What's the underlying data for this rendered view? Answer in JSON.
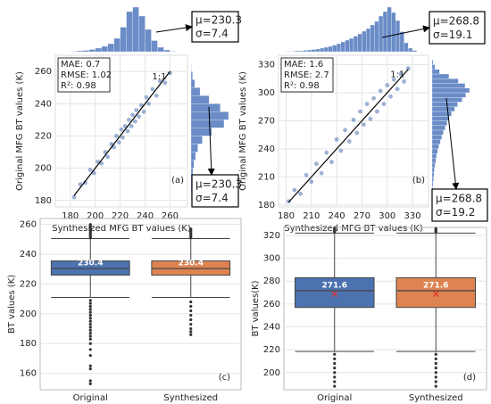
{
  "chart_data": [
    {
      "type": "scatter",
      "xlabel": "Synthesized MFG BT values (K)",
      "ylabel": "Original MFG BT values (K)",
      "xlim": [
        168,
        274
      ],
      "ylim": [
        176,
        270
      ],
      "xticks": [
        180,
        200,
        220,
        240,
        260
      ],
      "yticks": [
        180,
        200,
        220,
        240,
        260
      ],
      "color": "#4c72b0",
      "grid": true,
      "x": [
        183,
        188,
        192,
        196,
        199,
        202,
        205,
        208,
        210,
        213,
        215,
        217,
        219,
        221,
        222,
        224,
        226,
        227,
        229,
        230,
        232,
        233,
        235,
        237,
        239,
        241,
        243,
        246,
        249,
        252,
        256,
        260
      ],
      "y": [
        182,
        190,
        191,
        199,
        197,
        204,
        203,
        210,
        207,
        215,
        213,
        220,
        216,
        224,
        219,
        226,
        223,
        230,
        226,
        233,
        229,
        236,
        232,
        239,
        235,
        244,
        240,
        249,
        245,
        254,
        253,
        259
      ],
      "stats": [
        "MAE: 0.7",
        "RMSE: 1.02",
        "R²: 0.98"
      ],
      "identity_label": "1:1",
      "panel_label": "(a)",
      "top_hist": {
        "bins": [
          180,
          185,
          190,
          195,
          200,
          205,
          210,
          215,
          220,
          225,
          230,
          235,
          240,
          245,
          250,
          255,
          260,
          265
        ],
        "counts": [
          1,
          2,
          3,
          5,
          8,
          12,
          18,
          30,
          55,
          90,
          100,
          80,
          50,
          25,
          10,
          4,
          1
        ],
        "annotation": [
          "μ=230.3",
          "σ=7.4"
        ],
        "color": "#6a8cc7"
      },
      "right_hist": {
        "bins": [
          180,
          185,
          190,
          195,
          200,
          205,
          210,
          215,
          220,
          225,
          230,
          235,
          240,
          245,
          250,
          255,
          260,
          265
        ],
        "counts": [
          1,
          2,
          3,
          5,
          8,
          12,
          18,
          30,
          55,
          88,
          100,
          78,
          48,
          24,
          10,
          4,
          1
        ],
        "annotation": [
          "μ=230.3",
          "σ=7.4"
        ],
        "color": "#6a8cc7"
      }
    },
    {
      "type": "scatter",
      "xlabel": "Synthesized MFG BT values (K)",
      "ylabel": "Original MFG BT values (K)",
      "xlim": [
        171,
        349
      ],
      "ylim": [
        178,
        340
      ],
      "xticks": [
        180,
        210,
        240,
        270,
        300,
        330
      ],
      "yticks": [
        180,
        210,
        240,
        270,
        300,
        330
      ],
      "color": "#4c72b0",
      "grid": true,
      "x": [
        183,
        190,
        197,
        204,
        210,
        216,
        222,
        228,
        234,
        240,
        245,
        250,
        255,
        260,
        264,
        268,
        272,
        276,
        280,
        284,
        288,
        292,
        296,
        300,
        304,
        308,
        312,
        316,
        320,
        325
      ],
      "y": [
        184,
        196,
        192,
        212,
        205,
        224,
        214,
        236,
        226,
        250,
        238,
        260,
        248,
        271,
        257,
        280,
        266,
        288,
        272,
        294,
        280,
        302,
        288,
        308,
        296,
        314,
        304,
        320,
        312,
        326
      ],
      "stats": [
        "MAE: 1.6",
        "RMSE: 2.7",
        "R²: 0.98"
      ],
      "identity_label": "1:1",
      "panel_label": "(b)",
      "top_hist": {
        "bins": [
          180,
          185,
          190,
          195,
          200,
          205,
          210,
          215,
          220,
          225,
          230,
          235,
          240,
          245,
          250,
          255,
          260,
          265,
          270,
          275,
          280,
          285,
          290,
          295,
          300,
          305,
          310,
          315,
          320,
          325,
          330,
          335
        ],
        "counts": [
          1,
          1,
          2,
          2,
          3,
          4,
          5,
          6,
          8,
          10,
          12,
          15,
          18,
          22,
          26,
          30,
          35,
          40,
          46,
          52,
          60,
          68,
          80,
          90,
          100,
          88,
          70,
          45,
          20,
          8,
          3
        ],
        "annotation": [
          "μ=268.8",
          "σ=19.1"
        ],
        "color": "#6a8cc7"
      },
      "right_hist": {
        "bins": [
          180,
          185,
          190,
          195,
          200,
          205,
          210,
          215,
          220,
          225,
          230,
          235,
          240,
          245,
          250,
          255,
          260,
          265,
          270,
          275,
          280,
          285,
          290,
          295,
          300,
          305,
          310,
          315,
          320,
          325,
          330,
          335
        ],
        "counts": [
          1,
          1,
          2,
          2,
          3,
          4,
          5,
          6,
          8,
          10,
          12,
          15,
          18,
          22,
          26,
          30,
          35,
          40,
          46,
          52,
          60,
          68,
          80,
          90,
          100,
          88,
          70,
          45,
          20,
          8,
          3
        ],
        "annotation": [
          "μ=268.8",
          "σ=19.2"
        ],
        "color": "#6a8cc7"
      }
    },
    {
      "type": "box",
      "ylabel": "BT values (K)",
      "ylim": [
        149,
        264
      ],
      "yticks": [
        160,
        180,
        200,
        220,
        240,
        260
      ],
      "grid": true,
      "panel_label": "(c)",
      "categories": [
        "Original",
        "Synthesized"
      ],
      "boxes": [
        {
          "color": "#4c72b0",
          "q1": 226,
          "median": 230.4,
          "q3": 235.5,
          "whislo": 211,
          "whishi": 250.5,
          "fliers": [
            153,
            155,
            163,
            165,
            172,
            176,
            180,
            183,
            185,
            187,
            189,
            191,
            193,
            195,
            197,
            199,
            201,
            203,
            205,
            207,
            209,
            251,
            252,
            253,
            254,
            255,
            256,
            257,
            258,
            259,
            260
          ]
        },
        {
          "color": "#dd8452",
          "q1": 226,
          "median": 230.4,
          "q3": 235.5,
          "whislo": 211,
          "whishi": 250.5,
          "fliers": [
            186,
            188,
            190,
            193,
            196,
            199,
            202,
            205,
            208,
            251,
            252,
            253,
            254,
            255,
            256,
            257
          ]
        }
      ]
    },
    {
      "type": "box",
      "ylabel": "BT values(K)",
      "ylim": [
        185,
        327
      ],
      "yticks": [
        200,
        220,
        240,
        260,
        280,
        300,
        320
      ],
      "grid": true,
      "panel_label": "(d)",
      "categories": [
        "Original",
        "Synthesized"
      ],
      "boxes": [
        {
          "color": "#4c72b0",
          "q1": 257,
          "median": 271.6,
          "q3": 283,
          "whislo": 218.5,
          "whishi": 322,
          "mean": 268.8,
          "fliers": [
            188,
            192,
            196,
            200,
            204,
            208,
            212,
            216,
            323,
            324,
            325,
            326
          ]
        },
        {
          "color": "#dd8452",
          "q1": 257,
          "median": 271.6,
          "q3": 283,
          "whislo": 218.5,
          "whishi": 322,
          "mean": 268.8,
          "fliers": [
            188,
            192,
            196,
            200,
            204,
            208,
            212,
            216,
            323,
            324,
            325,
            326
          ]
        }
      ]
    }
  ]
}
